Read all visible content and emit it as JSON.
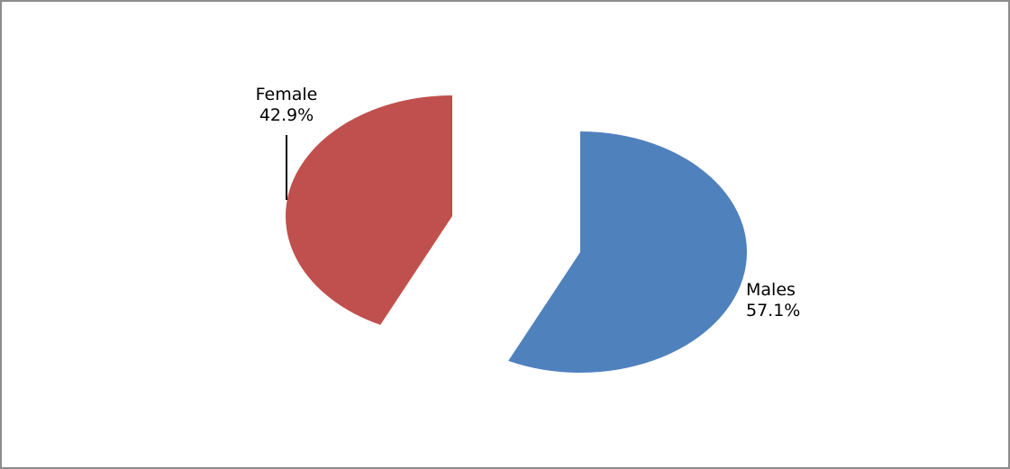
{
  "chart_data": {
    "type": "pie",
    "title": "",
    "legend": "none",
    "slices": [
      {
        "name": "Males",
        "value": 57.1,
        "label": "57.1%",
        "color": "#4f81bd"
      },
      {
        "name": "Female",
        "value": 42.9,
        "label": "42.9%",
        "color": "#c0504d"
      }
    ]
  }
}
